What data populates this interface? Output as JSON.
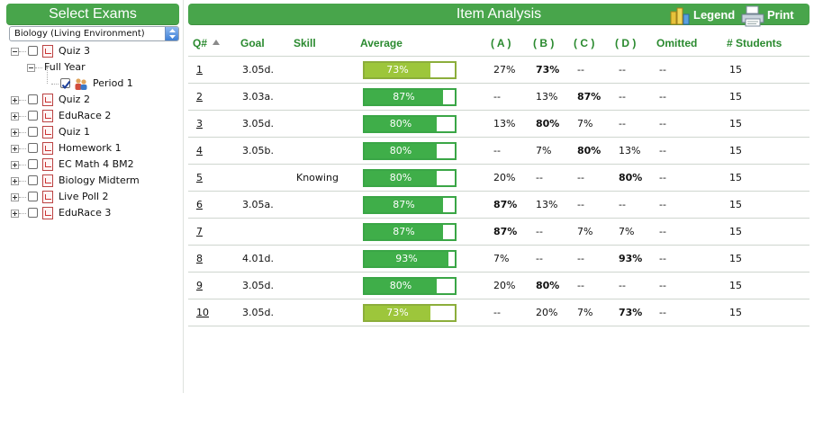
{
  "left_panel": {
    "title": "Select Exams",
    "subject_select": {
      "value": "Biology (Living Environment)"
    },
    "tree": [
      {
        "label": "Quiz 3",
        "level": 0,
        "expander": "minus",
        "checked": false,
        "icon": "exam-file-icon"
      },
      {
        "label": "Full Year",
        "level": 1,
        "expander": "minus",
        "checked": null,
        "icon": null
      },
      {
        "label": "Period 1",
        "level": 2,
        "expander": null,
        "checked": true,
        "icon": "class-group-icon"
      },
      {
        "label": "Quiz 2",
        "level": 0,
        "expander": "plus",
        "checked": false,
        "icon": "exam-file-icon"
      },
      {
        "label": "EduRace 2",
        "level": 0,
        "expander": "plus",
        "checked": false,
        "icon": "exam-file-icon"
      },
      {
        "label": "Quiz 1",
        "level": 0,
        "expander": "plus",
        "checked": false,
        "icon": "exam-file-icon"
      },
      {
        "label": "Homework 1",
        "level": 0,
        "expander": "plus",
        "checked": false,
        "icon": "exam-file-icon"
      },
      {
        "label": "EC Math 4 BM2",
        "level": 0,
        "expander": "plus",
        "checked": false,
        "icon": "exam-file-icon"
      },
      {
        "label": "Biology Midterm",
        "level": 0,
        "expander": "plus",
        "checked": false,
        "icon": "exam-file-icon"
      },
      {
        "label": "Live Poll 2",
        "level": 0,
        "expander": "plus",
        "checked": false,
        "icon": "exam-file-icon"
      },
      {
        "label": "EduRace 3",
        "level": 0,
        "expander": "plus",
        "checked": false,
        "icon": "exam-file-icon"
      }
    ]
  },
  "right_panel": {
    "title": "Item Analysis",
    "legend_label": "Legend",
    "print_label": "Print",
    "columns": {
      "q": "Q#",
      "goal": "Goal",
      "skill": "Skill",
      "average": "Average",
      "a": "( A )",
      "b": "( B )",
      "c": "( C )",
      "d": "( D )",
      "omitted": "Omitted",
      "students": "# Students"
    },
    "sort_indicator": "ascending",
    "rows": [
      {
        "q": "1",
        "goal": "3.05d.",
        "skill": "",
        "average": "73%",
        "average_value": 0.73,
        "a": "27%",
        "b": "73%",
        "c": "--",
        "d": "--",
        "omitted": "--",
        "students": "15",
        "correct": "b"
      },
      {
        "q": "2",
        "goal": "3.03a.",
        "skill": "",
        "average": "87%",
        "average_value": 0.87,
        "a": "--",
        "b": "13%",
        "c": "87%",
        "d": "--",
        "omitted": "--",
        "students": "15",
        "correct": "c"
      },
      {
        "q": "3",
        "goal": "3.05d.",
        "skill": "",
        "average": "80%",
        "average_value": 0.8,
        "a": "13%",
        "b": "80%",
        "c": "7%",
        "d": "--",
        "omitted": "--",
        "students": "15",
        "correct": "b"
      },
      {
        "q": "4",
        "goal": "3.05b.",
        "skill": "",
        "average": "80%",
        "average_value": 0.8,
        "a": "--",
        "b": "7%",
        "c": "80%",
        "d": "13%",
        "omitted": "--",
        "students": "15",
        "correct": "c"
      },
      {
        "q": "5",
        "goal": "",
        "skill": "Knowing",
        "average": "80%",
        "average_value": 0.8,
        "a": "20%",
        "b": "--",
        "c": "--",
        "d": "80%",
        "omitted": "--",
        "students": "15",
        "correct": "d"
      },
      {
        "q": "6",
        "goal": "3.05a.",
        "skill": "",
        "average": "87%",
        "average_value": 0.87,
        "a": "87%",
        "b": "13%",
        "c": "--",
        "d": "--",
        "omitted": "--",
        "students": "15",
        "correct": "a"
      },
      {
        "q": "7",
        "goal": "",
        "skill": "",
        "average": "87%",
        "average_value": 0.87,
        "a": "87%",
        "b": "--",
        "c": "7%",
        "d": "7%",
        "omitted": "--",
        "students": "15",
        "correct": "a"
      },
      {
        "q": "8",
        "goal": "4.01d.",
        "skill": "",
        "average": "93%",
        "average_value": 0.93,
        "a": "7%",
        "b": "--",
        "c": "--",
        "d": "93%",
        "omitted": "--",
        "students": "15",
        "correct": "d"
      },
      {
        "q": "9",
        "goal": "3.05d.",
        "skill": "",
        "average": "80%",
        "average_value": 0.8,
        "a": "20%",
        "b": "80%",
        "c": "--",
        "d": "--",
        "omitted": "--",
        "students": "15",
        "correct": "b"
      },
      {
        "q": "10",
        "goal": "3.05d.",
        "skill": "",
        "average": "73%",
        "average_value": 0.73,
        "a": "--",
        "b": "20%",
        "c": "7%",
        "d": "73%",
        "omitted": "--",
        "students": "15",
        "correct": "d"
      }
    ]
  },
  "colors": {
    "header_green": "#48a54b",
    "column_header_green": "#2a8a2f",
    "bar_green": "#3fae49",
    "bar_light_green": "#9dc63b"
  }
}
